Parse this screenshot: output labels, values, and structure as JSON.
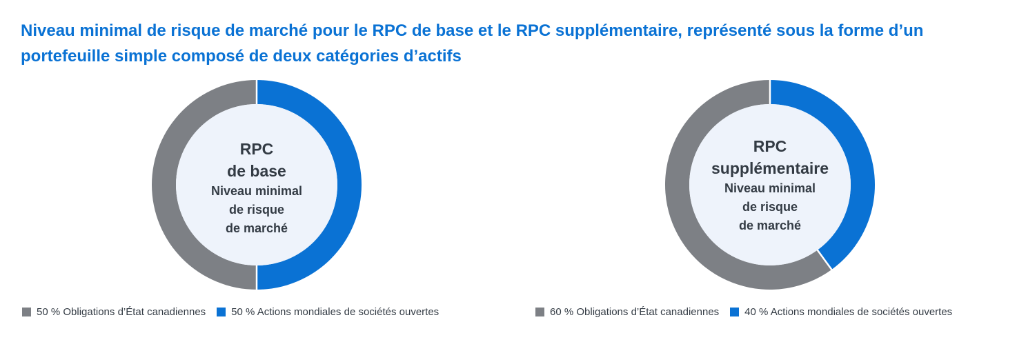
{
  "title_line1": "Niveau minimal de risque de marché pour le RPC de base et le RPC supplémentaire, représenté sous la forme d’un",
  "title_line2": "portefeuille simple composé de deux catégories d’actifs",
  "colors": {
    "title": "#0a72d4",
    "grey": "#7d8085",
    "blue": "#0a72d4",
    "center": "#eef3fb",
    "text": "#333b44"
  },
  "chart_data": [
    {
      "type": "pie",
      "center_label": [
        "RPC",
        "de base"
      ],
      "center_sublabel": [
        "Niveau minimal",
        "de risque",
        "de marché"
      ],
      "series": [
        {
          "name": "Obligations d’État canadiennes",
          "value": 50,
          "color": "#7d8085"
        },
        {
          "name": "Actions mondiales de sociétés ouvertes",
          "value": 50,
          "color": "#0a72d4"
        }
      ],
      "legend": [
        {
          "label": "50 % Obligations d’État canadiennes",
          "color": "#7d8085"
        },
        {
          "label": "50 % Actions mondiales de sociétés ouvertes",
          "color": "#0a72d4"
        }
      ],
      "legend_position": "bottom"
    },
    {
      "type": "pie",
      "center_label": [
        "RPC",
        "supplémentaire"
      ],
      "center_sublabel": [
        "Niveau minimal",
        "de risque",
        "de marché"
      ],
      "series": [
        {
          "name": "Obligations d’État canadiennes",
          "value": 60,
          "color": "#7d8085"
        },
        {
          "name": "Actions mondiales de sociétés ouvertes",
          "value": 40,
          "color": "#0a72d4"
        }
      ],
      "legend": [
        {
          "label": "60 % Obligations d’État canadiennes",
          "color": "#7d8085"
        },
        {
          "label": "40 % Actions mondiales de sociétés ouvertes",
          "color": "#0a72d4"
        }
      ],
      "legend_position": "bottom"
    }
  ]
}
